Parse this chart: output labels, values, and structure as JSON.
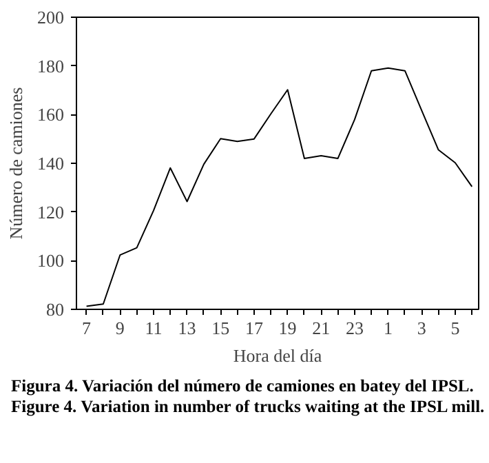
{
  "chart_data": {
    "type": "line",
    "categories": [
      "7",
      null,
      "9",
      null,
      "11",
      null,
      "13",
      null,
      "15",
      null,
      "17",
      null,
      "19",
      null,
      "21",
      null,
      "23",
      null,
      "1",
      null,
      "3",
      null,
      "5",
      null
    ],
    "series": [
      {
        "color": "#000000",
        "values": [
          81.3,
          82.2,
          102.3,
          105.3,
          120.6,
          138.1,
          124.3,
          139.6,
          150.1,
          149,
          150,
          160.3,
          170.2,
          142,
          143.1,
          142,
          158,
          178,
          179.1,
          178,
          161.7,
          145.5,
          140.2,
          130.4
        ]
      }
    ],
    "ylim": [
      80,
      200
    ],
    "yticks": [
      80,
      100,
      120,
      140,
      160,
      180,
      200
    ],
    "xlabel": "Hora del día",
    "ylabel": "Número de camiones",
    "grid": false,
    "line_style": "solid",
    "annotations": [
      "Figura 4. Variación del número de camiones en batey del IPSL.",
      "Figure 4. Variation in number of trucks waiting at the IPSL mill."
    ]
  }
}
